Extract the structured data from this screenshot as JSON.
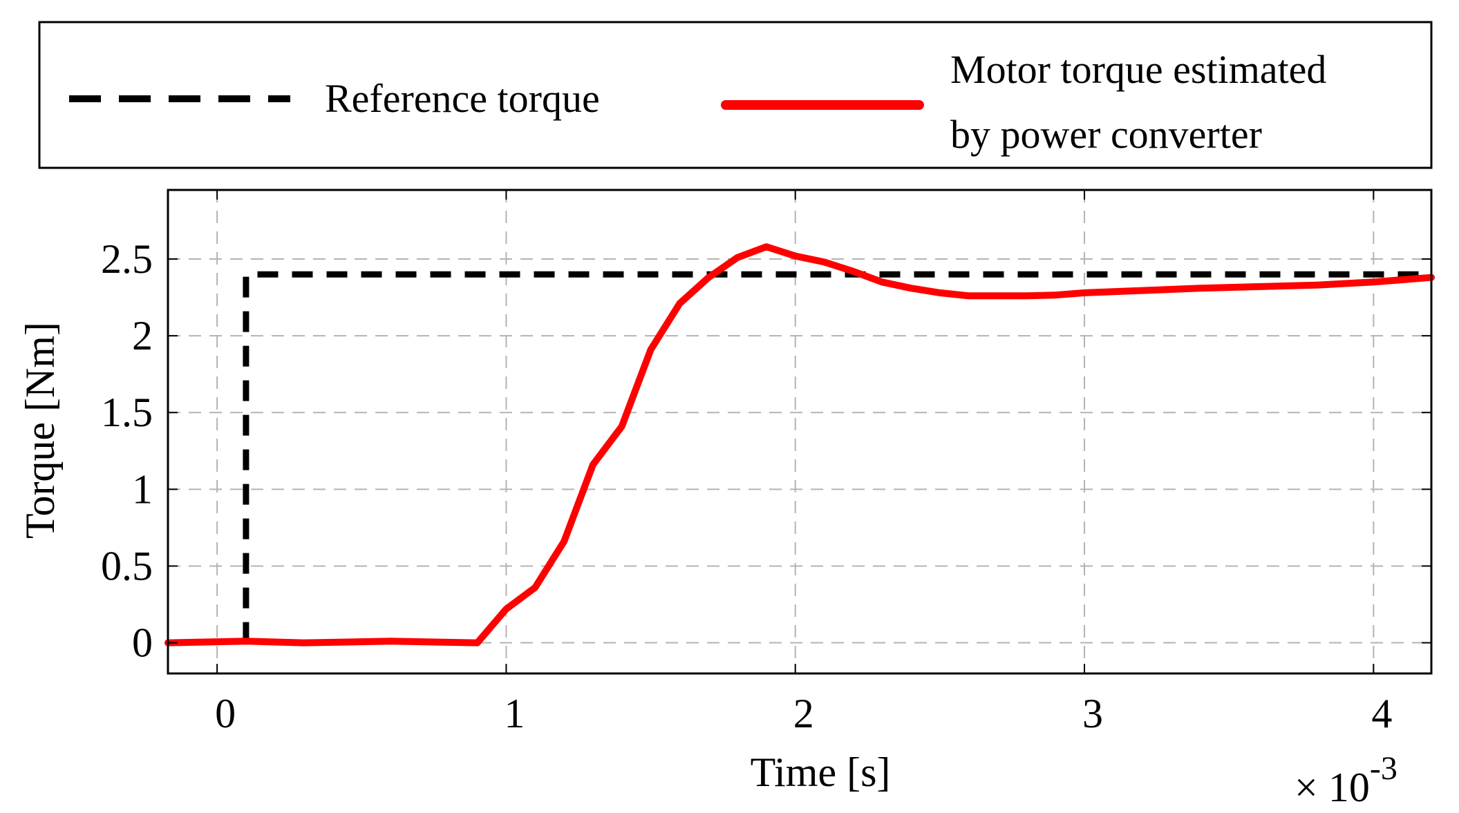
{
  "chart_data": {
    "type": "line",
    "title": "",
    "xlabel": "Time [s]",
    "ylabel": "Torque [Nm]",
    "x_exponent_label": "× 10",
    "x_exponent_power": "-3",
    "xlim": [
      -0.17,
      4.2
    ],
    "ylim": [
      -0.2,
      2.95
    ],
    "x_ticks": [
      0,
      1,
      2,
      3,
      4
    ],
    "x_tick_labels": [
      "0",
      "1",
      "2",
      "3",
      "4"
    ],
    "y_ticks": [
      0,
      0.5,
      1,
      1.5,
      2,
      2.5
    ],
    "y_tick_labels": [
      "0",
      "0.5",
      "1",
      "1.5",
      "2",
      "2.5"
    ],
    "grid": true,
    "legend_position": "top",
    "legend": [
      {
        "label": "Reference torque"
      },
      {
        "label_lines": [
          "Motor torque estimated",
          "by power converter"
        ]
      }
    ],
    "series": [
      {
        "name": "Reference torque",
        "color": "#000000",
        "style": "dashed",
        "x": [
          0.1,
          0.1,
          4.2
        ],
        "y": [
          0,
          2.4,
          2.4
        ]
      },
      {
        "name": "Motor torque estimated by power converter",
        "color": "#ff0000",
        "style": "solid",
        "x": [
          -0.17,
          0.1,
          0.3,
          0.6,
          0.9,
          1.0,
          1.1,
          1.2,
          1.3,
          1.4,
          1.5,
          1.6,
          1.7,
          1.8,
          1.9,
          2.0,
          2.1,
          2.2,
          2.3,
          2.4,
          2.5,
          2.6,
          2.7,
          2.8,
          2.9,
          3.0,
          3.2,
          3.4,
          3.6,
          3.8,
          4.0,
          4.2
        ],
        "y": [
          0,
          0.01,
          0.0,
          0.01,
          0.0,
          0.22,
          0.36,
          0.66,
          1.16,
          1.41,
          1.91,
          2.21,
          2.38,
          2.51,
          2.58,
          2.52,
          2.48,
          2.42,
          2.35,
          2.31,
          2.28,
          2.26,
          2.26,
          2.26,
          2.265,
          2.28,
          2.295,
          2.31,
          2.32,
          2.33,
          2.35,
          2.38
        ]
      }
    ]
  }
}
